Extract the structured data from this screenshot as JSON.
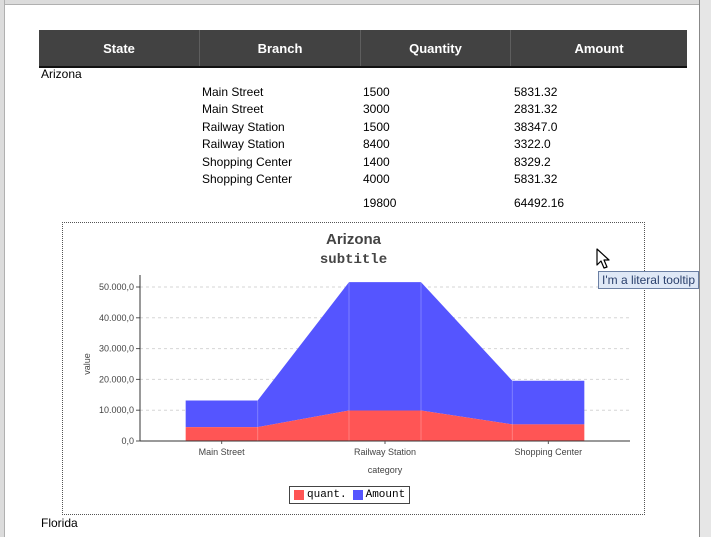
{
  "table": {
    "headers": [
      "State",
      "Branch",
      "Quantity",
      "Amount"
    ],
    "groups": [
      {
        "state": "Arizona",
        "rows": [
          {
            "branch": "Main Street",
            "quantity": "1500",
            "amount": "5831.32"
          },
          {
            "branch": "Main Street",
            "quantity": "3000",
            "amount": "2831.32"
          },
          {
            "branch": "Railway Station",
            "quantity": "1500",
            "amount": "38347.0"
          },
          {
            "branch": "Railway Station",
            "quantity": "8400",
            "amount": "3322.0"
          },
          {
            "branch": "Shopping Center",
            "quantity": "1400",
            "amount": "8329.2"
          },
          {
            "branch": "Shopping Center",
            "quantity": "4000",
            "amount": "5831.32"
          }
        ],
        "total_quantity": "19800",
        "total_amount": "64492.16"
      },
      {
        "state": "Florida"
      }
    ]
  },
  "chart_data": {
    "type": "area",
    "title": "Arizona",
    "subtitle": "subtitle",
    "xlabel": "category",
    "ylabel": "value",
    "categories": [
      "Main Street",
      "Railway Station",
      "Shopping Center"
    ],
    "ylim": [
      0,
      50000
    ],
    "yticks": [
      "0,0",
      "10.000,0",
      "20.000,0",
      "30.000,0",
      "40.000,0",
      "50.000,0"
    ],
    "grid": true,
    "stacked": true,
    "legend_position": "bottom",
    "series": [
      {
        "name": "quant.",
        "color": "#ff5555",
        "values": [
          4500,
          9900,
          5400
        ]
      },
      {
        "name": "Amount",
        "color": "#5555ff",
        "values": [
          8662.64,
          41669.0,
          14160.52
        ]
      }
    ]
  },
  "tooltip": {
    "text": "I'm a literal tooltip"
  },
  "colors": {
    "header_bg": "#424242",
    "header_text": "#ffffff"
  }
}
